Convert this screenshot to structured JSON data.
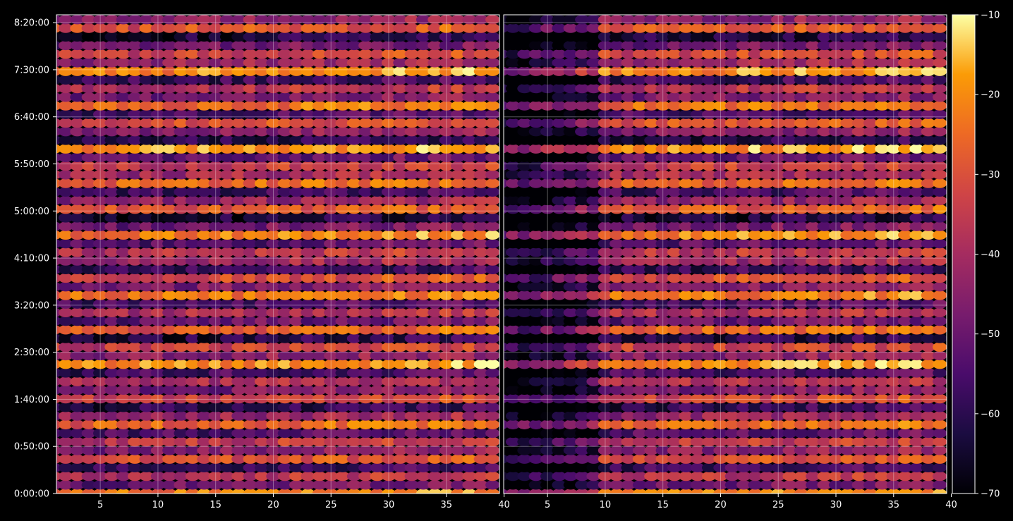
{
  "chart_data": {
    "type": "heatmap",
    "colormap": "inferno",
    "background": "#000000",
    "foreground": "#ffffff",
    "grid": true,
    "panels": [
      {
        "name": "left",
        "xlim": [
          1.2,
          39.6
        ],
        "x_ticks": [
          5,
          10,
          15,
          20,
          25,
          30,
          35,
          40
        ],
        "x_tick_labels": [
          "5",
          "10",
          "15",
          "20",
          "25",
          "30",
          "35",
          "40"
        ],
        "late_start": false
      },
      {
        "name": "right",
        "xlim": [
          1.2,
          39.6
        ],
        "x_ticks": [
          5,
          10,
          15,
          20,
          25,
          30,
          35,
          40
        ],
        "x_tick_labels": [
          "5",
          "10",
          "15",
          "20",
          "25",
          "30",
          "35",
          "40"
        ],
        "late_start": true
      }
    ],
    "y_axis": {
      "unit": "seconds",
      "ylim": [
        0,
        30500
      ],
      "ticks": [
        0,
        3000,
        6000,
        9000,
        12000,
        15000,
        18000,
        21000,
        24000,
        27000,
        30000
      ],
      "tick_labels": [
        "0:00:00",
        "0:50:00",
        "1:40:00",
        "2:30:00",
        "3:20:00",
        "4:10:00",
        "5:00:00",
        "5:50:00",
        "6:40:00",
        "7:30:00",
        "8:20:00"
      ]
    },
    "colorbar": {
      "range": [
        -70,
        -10
      ],
      "ticks": [
        -70,
        -60,
        -50,
        -40,
        -30,
        -20,
        -10
      ],
      "tick_labels": [
        "−70",
        "−60",
        "−50",
        "−40",
        "−30",
        "−20",
        "−10"
      ]
    },
    "x_step": 1,
    "x_start": 1,
    "x_count": 39,
    "row_step_seconds": 549,
    "row_levels_dB": [
      -25,
      -52,
      -40,
      -60,
      -33,
      -48,
      -38,
      -56,
      -28,
      -45,
      -62,
      -35,
      -50,
      -42,
      -58,
      -22,
      -47,
      -36,
      -64,
      -30,
      -53,
      -41,
      -57,
      -26,
      -49,
      -34,
      -61,
      -44,
      -39,
      -55,
      -24,
      -51,
      -66,
      -31,
      -46,
      -59,
      -29,
      -43,
      -37,
      -54,
      -21,
      -63,
      -48,
      -33,
      -57,
      -27,
      -50,
      -40,
      -60,
      -23,
      -45,
      -35,
      -52,
      -65,
      -32,
      -47
    ]
  }
}
